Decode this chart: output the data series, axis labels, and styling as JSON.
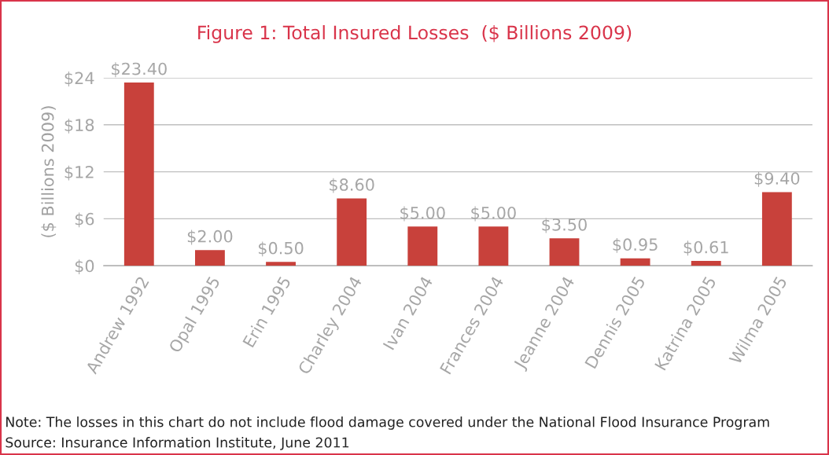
{
  "chart_data": {
    "type": "bar",
    "title": "Figure 1: Total Insured Losses  ($ Billions 2009)",
    "ylabel": "($ Billions 2009)",
    "categories": [
      "Andrew 1992",
      "Opal 1995",
      "Erin 1995",
      "Charley 2004",
      "Ivan 2004",
      "Frances 2004",
      "Jeanne 2004",
      "Dennis 2005",
      "Katrina 2005",
      "Wilma 2005"
    ],
    "values": [
      23.4,
      2.0,
      0.5,
      8.6,
      5.0,
      5.0,
      3.5,
      0.95,
      0.61,
      9.4
    ],
    "value_labels": [
      "$23.40",
      "$2.00",
      "$0.50",
      "$8.60",
      "$5.00",
      "$5.00",
      "$3.50",
      "$0.95",
      "$0.61",
      "$9.40"
    ],
    "color": "#c8413b",
    "ylim": [
      0,
      24
    ],
    "yticks": [
      {
        "value": 0,
        "label": "$0"
      },
      {
        "value": 6,
        "label": "$6"
      },
      {
        "value": 12,
        "label": "$12"
      },
      {
        "value": 18,
        "label": "$18"
      },
      {
        "value": 24,
        "label": "$24"
      }
    ],
    "grid": "y",
    "annotations": [
      "Note: The losses in this chart do not include flood damage covered under the National Flood Insurance Program",
      "Source: Insurance Information Institute, June 2011"
    ]
  }
}
